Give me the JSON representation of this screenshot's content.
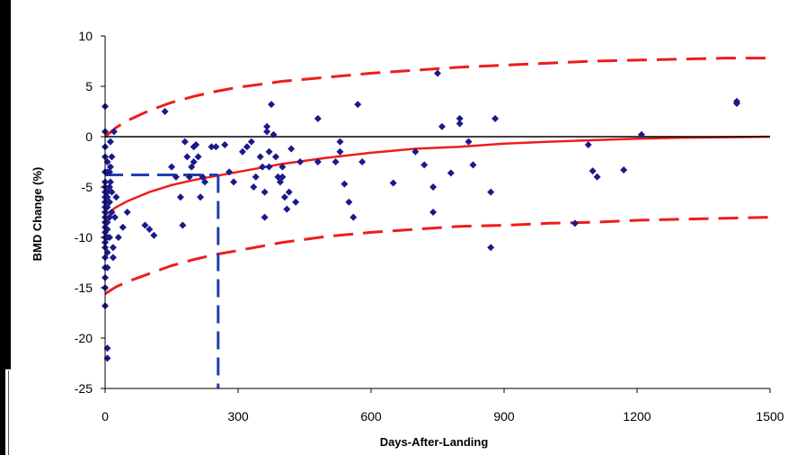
{
  "chart_data": {
    "type": "scatter",
    "title": "",
    "xlabel": "Days-After-Landing",
    "ylabel": "BMD Change (%)",
    "xlim": [
      0,
      1500
    ],
    "ylim": [
      -25,
      10
    ],
    "xticks": [
      0,
      300,
      600,
      900,
      1200,
      1500
    ],
    "yticks": [
      10,
      5,
      0,
      -5,
      -10,
      -15,
      -20,
      -25
    ],
    "grid": false,
    "legend": "none",
    "colors": {
      "points": "#1a1a8c",
      "fit": "#ee1c1c",
      "reference": "#1f3fb0",
      "zero_line": "#000000"
    },
    "points": {
      "x": [
        0,
        0,
        0,
        0,
        0,
        0,
        0,
        0,
        0,
        0,
        0,
        0,
        0,
        0,
        0,
        0,
        0,
        0,
        0,
        0,
        0,
        0,
        0,
        0,
        5,
        5,
        5,
        5,
        5,
        5,
        5,
        5,
        5,
        5,
        5,
        5,
        10,
        10,
        10,
        10,
        10,
        12,
        12,
        12,
        15,
        15,
        15,
        18,
        18,
        20,
        22,
        25,
        30,
        40,
        50,
        90,
        100,
        110,
        135,
        150,
        160,
        170,
        175,
        180,
        185,
        190,
        195,
        200,
        200,
        205,
        210,
        215,
        220,
        225,
        240,
        250,
        270,
        280,
        290,
        310,
        320,
        330,
        335,
        340,
        350,
        355,
        360,
        360,
        365,
        365,
        370,
        370,
        375,
        380,
        385,
        390,
        395,
        400,
        400,
        405,
        410,
        415,
        420,
        430,
        440,
        480,
        480,
        520,
        530,
        530,
        540,
        550,
        560,
        570,
        580,
        650,
        700,
        720,
        740,
        740,
        750,
        760,
        780,
        800,
        800,
        820,
        830,
        870,
        870,
        880,
        1060,
        1090,
        1100,
        1110,
        1170,
        1210,
        1425,
        1425
      ],
      "y": [
        3,
        0.5,
        -1,
        -2,
        -3.5,
        -4.5,
        -5,
        -5.5,
        -6,
        -6.5,
        -7,
        -7.5,
        -8,
        -8.5,
        -9,
        -9.5,
        -10,
        -10.5,
        -11,
        -12,
        -13,
        -14,
        -15,
        -16.8,
        -21,
        -22,
        -2.5,
        -3.5,
        -5.5,
        -6,
        -7,
        -8.5,
        -9.2,
        -10,
        -11.5,
        -13,
        -3.5,
        -5,
        -6.5,
        -8,
        -10,
        -0.5,
        -3,
        -4.5,
        -2,
        -5.5,
        -7.5,
        -11,
        -12,
        0.5,
        -8,
        -6,
        -10,
        -9,
        -7.5,
        -8.8,
        -9.2,
        -9.8,
        2.5,
        -3,
        -4,
        -6,
        -8.8,
        -0.5,
        -2,
        -4,
        -3,
        -1,
        -2.5,
        -0.8,
        -2,
        -6,
        -4,
        -4.5,
        -1,
        -1,
        -0.8,
        -3.5,
        -4.5,
        -1.5,
        -1,
        -0.5,
        -5,
        -4,
        -2,
        -3,
        -5.5,
        -8,
        0.5,
        1,
        -1.5,
        -3,
        3.2,
        0.2,
        -2,
        -4,
        -4.5,
        -4,
        -3,
        -6,
        -7.2,
        -5.5,
        -1.2,
        -6.5,
        -2.5,
        1.8,
        -2.5,
        -2.5,
        -1.5,
        -0.5,
        -4.7,
        -6.5,
        -8,
        3.2,
        -2.5,
        -4.6,
        -1.5,
        -2.8,
        -7.5,
        -5,
        6.3,
        1,
        -3.6,
        1.8,
        1.3,
        -0.5,
        -2.8,
        -5.5,
        -11,
        1.8,
        -8.6,
        -0.8,
        -3.4,
        -4,
        -3.3,
        0.2,
        3.5,
        3.3
      ]
    },
    "fit_line": {
      "x": [
        0,
        25,
        50,
        100,
        150,
        200,
        250,
        300,
        350,
        400,
        500,
        600,
        700,
        800,
        900,
        1000,
        1100,
        1200,
        1300,
        1400,
        1500
      ],
      "y": [
        -7.8,
        -7.0,
        -6.4,
        -5.5,
        -4.8,
        -4.3,
        -3.9,
        -3.5,
        -3.1,
        -2.7,
        -2.1,
        -1.6,
        -1.2,
        -1.0,
        -0.7,
        -0.5,
        -0.35,
        -0.2,
        -0.1,
        -0.05,
        0
      ]
    },
    "upper_band": {
      "x": [
        0,
        25,
        50,
        100,
        150,
        200,
        250,
        300,
        350,
        400,
        500,
        600,
        700,
        800,
        900,
        1000,
        1100,
        1200,
        1300,
        1400,
        1500
      ],
      "y": [
        0,
        0.9,
        1.6,
        2.6,
        3.4,
        4.0,
        4.5,
        4.9,
        5.2,
        5.5,
        5.9,
        6.3,
        6.6,
        6.9,
        7.1,
        7.3,
        7.5,
        7.6,
        7.7,
        7.8,
        7.8
      ]
    },
    "lower_band": {
      "x": [
        0,
        25,
        50,
        100,
        150,
        200,
        250,
        300,
        350,
        400,
        500,
        600,
        700,
        800,
        900,
        1000,
        1100,
        1200,
        1300,
        1400,
        1500
      ],
      "y": [
        -15.6,
        -14.9,
        -14.4,
        -13.6,
        -12.8,
        -12.2,
        -11.7,
        -11.3,
        -10.9,
        -10.5,
        -9.9,
        -9.5,
        -9.2,
        -8.9,
        -8.8,
        -8.6,
        -8.5,
        -8.3,
        -8.2,
        -8.1,
        -8.0
      ]
    },
    "reference": {
      "x": 255,
      "y": -3.8
    }
  }
}
